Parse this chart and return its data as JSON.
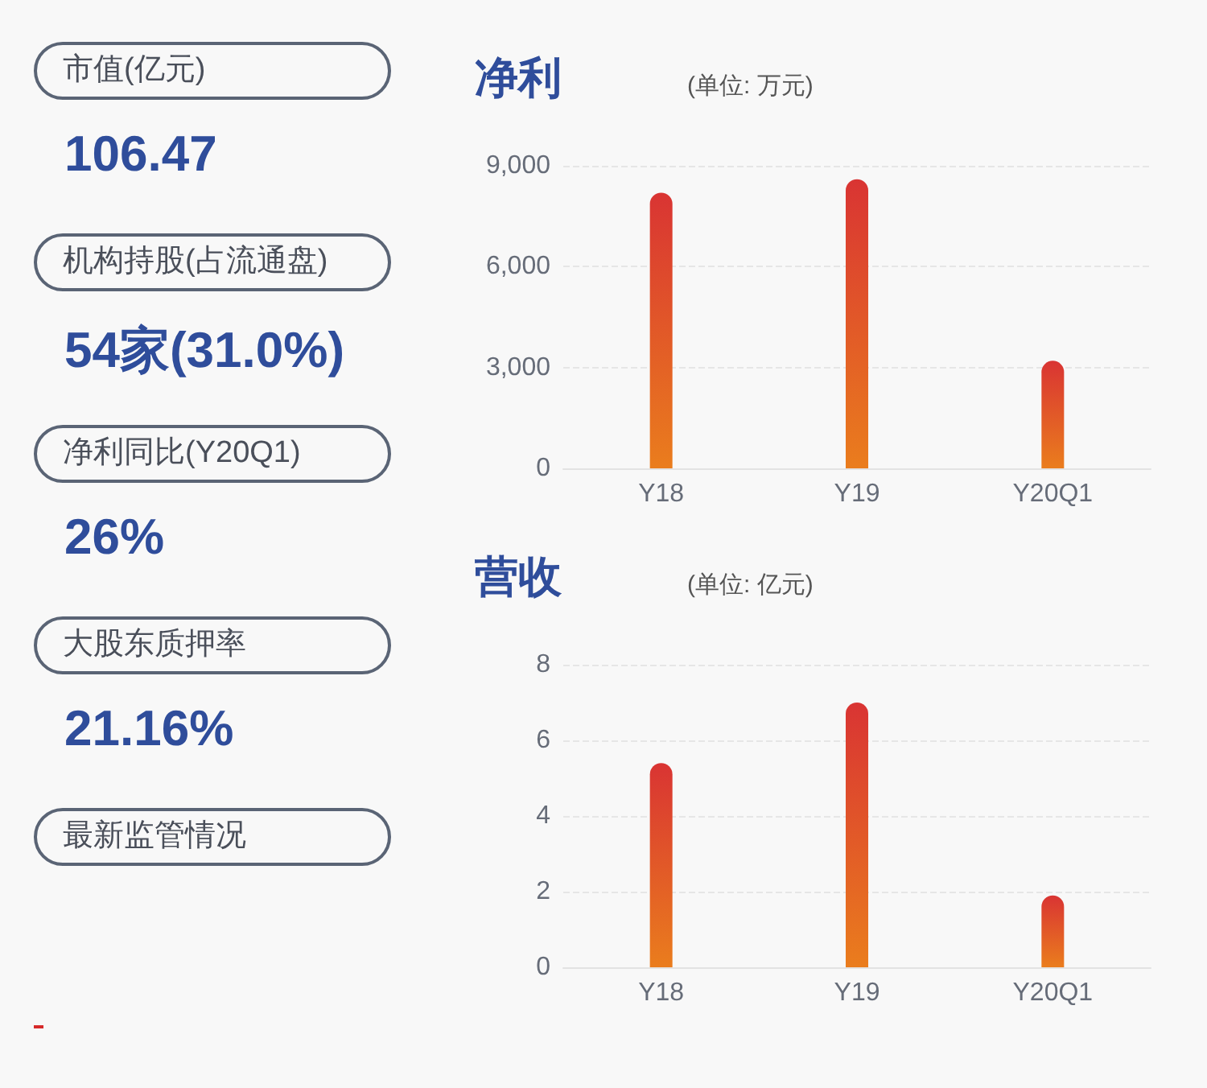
{
  "chart_data": [
    {
      "type": "other",
      "annotations": [
        "市值(亿元)",
        "106.47",
        "机构持股(占流通盘)",
        "54家(31.0%)",
        "净利同比(Y20Q1)",
        "26%",
        "大股东质押率",
        "21.16%",
        "最新监管情况"
      ]
    },
    {
      "type": "bar",
      "title": "净利",
      "subtitle": "(单位: 万元)",
      "categories": [
        "Y18",
        "Y19",
        "Y20Q1"
      ],
      "values": [
        8200,
        8600,
        3200
      ],
      "color": "#d93433",
      "ylim": [
        0,
        9000
      ],
      "yticks": [
        0,
        {
          "value": 3000,
          "label": "3,000"
        },
        {
          "value": 6000,
          "label": "6,000"
        },
        {
          "value": 9000,
          "label": "9,000"
        }
      ],
      "grid": "y"
    },
    {
      "type": "bar",
      "title": "营收",
      "subtitle": "(单位: 亿元)",
      "categories": [
        "Y18",
        "Y19",
        "Y20Q1"
      ],
      "values": [
        5.4,
        7.0,
        1.9
      ],
      "color": "#d93433",
      "ylim": [
        0,
        8
      ],
      "yticks": [
        0,
        2,
        4,
        6,
        8
      ],
      "grid": "y"
    }
  ]
}
